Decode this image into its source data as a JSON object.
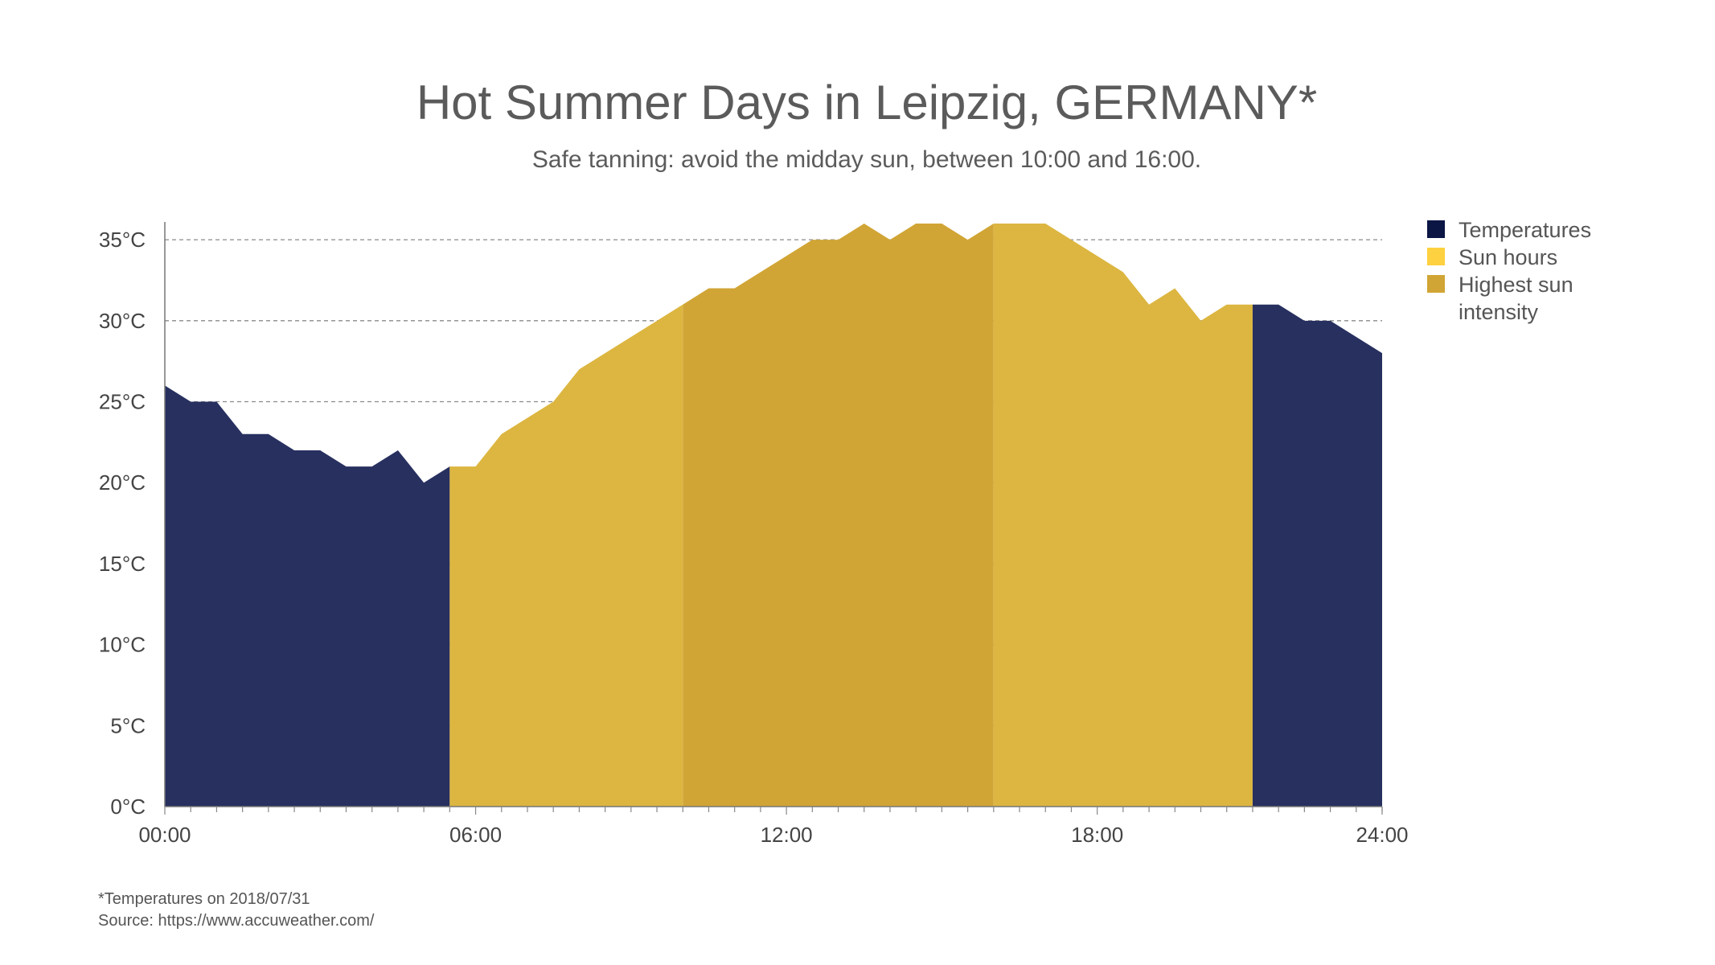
{
  "chart_data": {
    "type": "area",
    "title": "Hot Summer Days in Leipzig, GERMANY*",
    "subtitle": "Safe tanning: avoid the midday sun, between 10:00 and 16:00.",
    "x_tick_labels": [
      "00:00",
      "06:00",
      "12:00",
      "18:00",
      "24:00"
    ],
    "y_tick_labels": [
      "0°C",
      "5°C",
      "10°C",
      "15°C",
      "20°C",
      "25°C",
      "30°C",
      "35°C"
    ],
    "xlim_hours": [
      0,
      23.5
    ],
    "ylim": [
      0,
      36
    ],
    "y_ticks": [
      0,
      5,
      10,
      15,
      20,
      25,
      30,
      35
    ],
    "grid": true,
    "legend_position": "right",
    "series": [
      {
        "name": "Temperatures",
        "color": "#27305f",
        "legend_color": "#0c1645",
        "x_hours": [
          0,
          0.5,
          1,
          1.5,
          2,
          2.5,
          3,
          3.5,
          4,
          4.5,
          5,
          5.5
        ],
        "values": [
          26,
          25,
          25,
          23,
          23,
          22,
          22,
          21,
          21,
          22,
          20,
          21
        ]
      },
      {
        "name": "Sun hours",
        "color": "#dcb640",
        "legend_color": "#fdd13f",
        "x_hours": [
          5.5,
          6,
          6.5,
          7,
          7.5,
          8,
          8.5,
          9,
          9.5,
          10
        ],
        "values": [
          21,
          21,
          23,
          24,
          25,
          27,
          28,
          29,
          30,
          31
        ]
      },
      {
        "name": "Highest sun intensity",
        "color": "#d1a535",
        "legend_color": "#d1a535",
        "x_hours": [
          10,
          10.5,
          11,
          11.5,
          12,
          12.5,
          13,
          13.5,
          14,
          14.5,
          15,
          15.5,
          16
        ],
        "values": [
          31,
          32,
          32,
          33,
          34,
          35,
          35,
          36,
          35,
          36,
          36,
          35,
          36
        ]
      },
      {
        "name": "Sun hours",
        "color": "#dcb640",
        "legend_color": "#fdd13f",
        "x_hours": [
          16,
          16.5,
          17,
          17.5,
          18,
          18.5,
          19,
          19.5,
          20,
          20.5,
          21
        ],
        "values": [
          36,
          36,
          36,
          35,
          34,
          33,
          31,
          32,
          30,
          31,
          31
        ]
      },
      {
        "name": "Temperatures",
        "color": "#27305f",
        "legend_color": "#0c1645",
        "x_hours": [
          21,
          21.5,
          22,
          22.5,
          23,
          23.5
        ],
        "values": [
          31,
          31,
          30,
          30,
          29,
          28
        ]
      }
    ],
    "legend": [
      {
        "label_lines": [
          "Temperatures"
        ],
        "color": "#0c1645"
      },
      {
        "label_lines": [
          "Sun hours"
        ],
        "color": "#fdd13f"
      },
      {
        "label_lines": [
          "Highest sun",
          "intensity"
        ],
        "color": "#d1a535"
      }
    ]
  },
  "footnotes": {
    "line1": "*Temperatures on 2018/07/31",
    "line2": "Source: https://www.accuweather.com/"
  }
}
